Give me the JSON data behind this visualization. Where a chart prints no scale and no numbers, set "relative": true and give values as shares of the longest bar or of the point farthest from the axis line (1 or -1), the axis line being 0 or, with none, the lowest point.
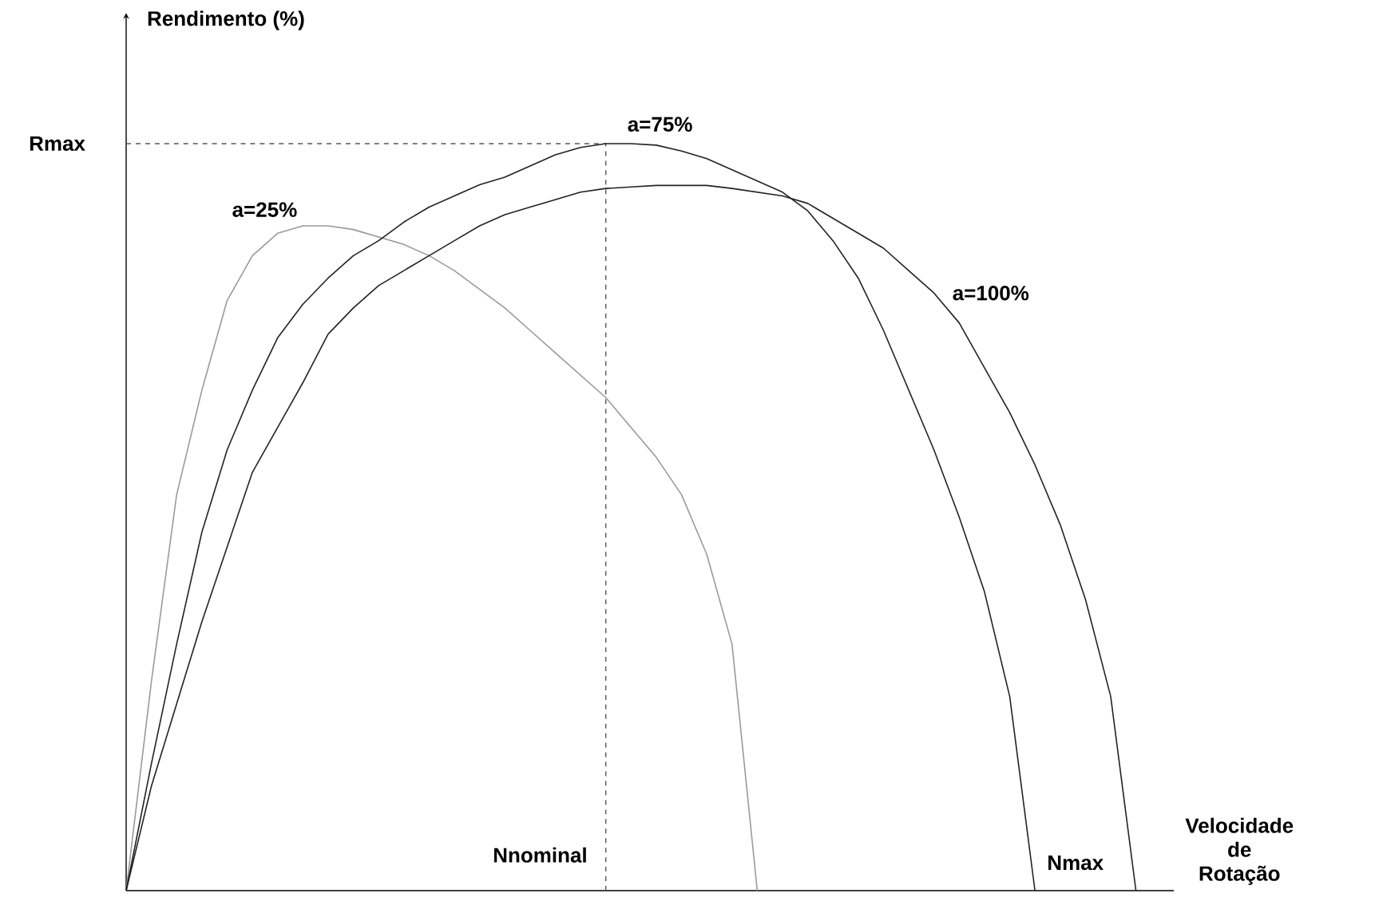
{
  "chart_data": {
    "type": "line",
    "relative": true,
    "xlabel": "Velocidade de Rotação",
    "categories": [
      null,
      null,
      null,
      null,
      null,
      null,
      null,
      null,
      null,
      null,
      null,
      null,
      null,
      null,
      null,
      null,
      null,
      null,
      null,
      null,
      null,
      null,
      null,
      null,
      null,
      null,
      null,
      null,
      null,
      null,
      null,
      null,
      null,
      null,
      null,
      null,
      null,
      null,
      null,
      null,
      null,
      null
    ],
    "series": [
      {
        "name": "a=25%",
        "color": "#9a9a9a",
        "values": [
          0,
          0.28,
          0.53,
          0.67,
          0.79,
          0.85,
          0.88,
          0.89,
          0.89,
          0.885,
          0.875,
          0.865,
          0.85,
          0.83,
          0.805,
          0.78,
          0.75,
          0.72,
          0.69,
          0.66,
          0.62,
          0.58,
          0.53,
          0.45,
          0.33,
          0,
          null,
          null,
          null,
          null,
          null,
          null,
          null,
          null,
          null,
          null,
          null,
          null,
          null,
          null,
          null,
          null
        ]
      },
      {
        "name": "a=75%",
        "color": "#222222",
        "values": [
          0,
          0.17,
          0.33,
          0.48,
          0.59,
          0.67,
          0.74,
          0.785,
          0.82,
          0.85,
          0.87,
          0.895,
          0.915,
          0.93,
          0.945,
          0.955,
          0.97,
          0.985,
          0.995,
          1.0,
          1.0,
          0.998,
          0.99,
          0.98,
          0.965,
          0.95,
          0.935,
          0.91,
          0.87,
          0.82,
          0.75,
          0.67,
          0.59,
          0.5,
          0.4,
          0.26,
          0,
          null,
          null,
          null,
          null,
          null
        ]
      },
      {
        "name": "a=100%",
        "color": "#222222",
        "values": [
          0,
          0.14,
          0.25,
          0.36,
          0.46,
          0.56,
          0.62,
          0.68,
          0.745,
          0.78,
          0.81,
          0.83,
          0.85,
          0.87,
          0.89,
          0.905,
          0.915,
          0.925,
          0.935,
          0.94,
          0.942,
          0.944,
          0.944,
          0.944,
          0.94,
          0.935,
          0.93,
          0.92,
          0.9,
          0.88,
          0.86,
          0.83,
          0.8,
          0.76,
          0.7,
          0.64,
          0.57,
          0.49,
          0.39,
          0.26,
          0,
          null
        ]
      }
    ],
    "ref_lines": [
      {
        "axis": "y",
        "value": 1,
        "label": "Rmax",
        "color": "#555555",
        "line_style": "dashed"
      }
    ],
    "annotations": [
      "Rendimento (%)",
      "Nnominal",
      "Nmax"
    ]
  }
}
